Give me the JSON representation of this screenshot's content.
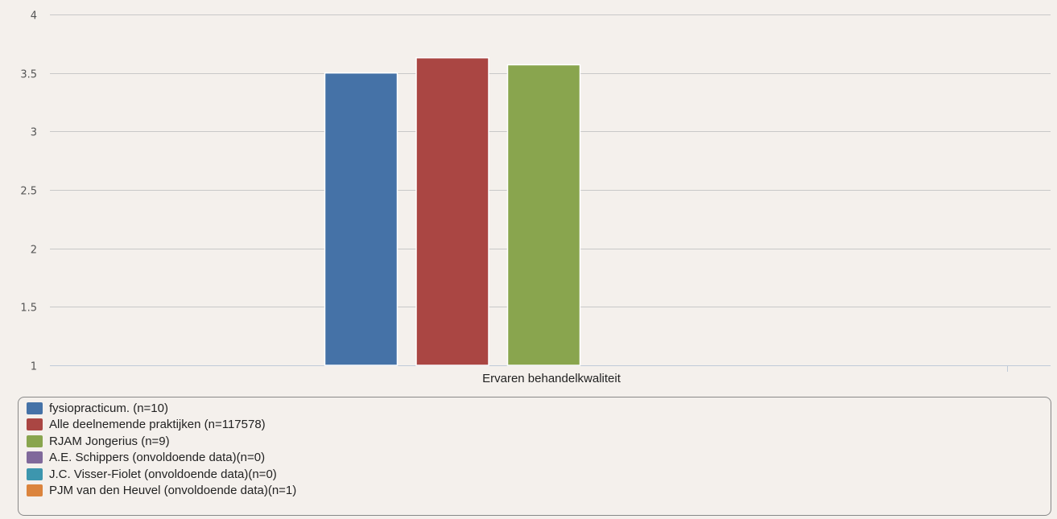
{
  "chart_data": {
    "type": "bar",
    "categories": [
      "Ervaren behandelkwaliteit"
    ],
    "series": [
      {
        "name": "fysiopracticum. (n=10)",
        "values": [
          3.5
        ],
        "color": "#4572a7"
      },
      {
        "name": "Alle deelnemende praktijken (n=117578)",
        "values": [
          3.63
        ],
        "color": "#aa4643"
      },
      {
        "name": "RJAM Jongerius (n=9)",
        "values": [
          3.57
        ],
        "color": "#89a54e"
      },
      {
        "name": "A.E. Schippers (onvoldoende data)(n=0)",
        "values": [
          null
        ],
        "color": "#80699b"
      },
      {
        "name": "J.C. Visser-Fiolet (onvoldoende data)(n=0)",
        "values": [
          null
        ],
        "color": "#3d96ae"
      },
      {
        "name": "PJM van den Heuvel (onvoldoende data)(n=1)",
        "values": [
          null
        ],
        "color": "#db843d"
      }
    ],
    "ylim": [
      1,
      4
    ],
    "yticks": [
      "1",
      "1.5",
      "2",
      "2.5",
      "3",
      "3.5",
      "4"
    ],
    "grid": true,
    "legend": "bottom",
    "title": "",
    "xlabel": "",
    "ylabel": ""
  }
}
